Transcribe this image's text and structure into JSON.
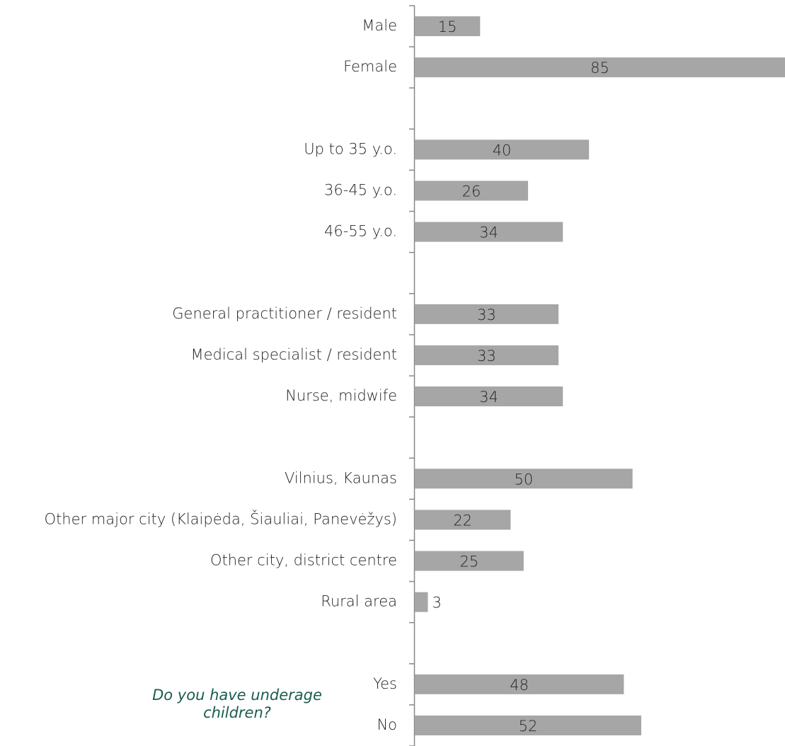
{
  "chart_data": {
    "type": "hbar",
    "categories": [
      "Male",
      "Female",
      null,
      "Up to 35 y.o.",
      "36-45 y.o.",
      "46-55 y.o.",
      null,
      "General practitioner / resident",
      "Medical specialist / resident",
      "Nurse, midwife",
      null,
      "Vilnius, Kaunas",
      "Other major city (Klaipėda, Šiauliai, Panevėžys)",
      "Other city, district centre",
      "Rural area",
      null,
      "Yes",
      "No"
    ],
    "values": [
      15,
      85,
      null,
      40,
      26,
      34,
      null,
      33,
      33,
      34,
      null,
      50,
      22,
      25,
      3,
      null,
      48,
      52
    ],
    "color": "#a6a6a6",
    "annotation": "Do you have underage children?"
  }
}
